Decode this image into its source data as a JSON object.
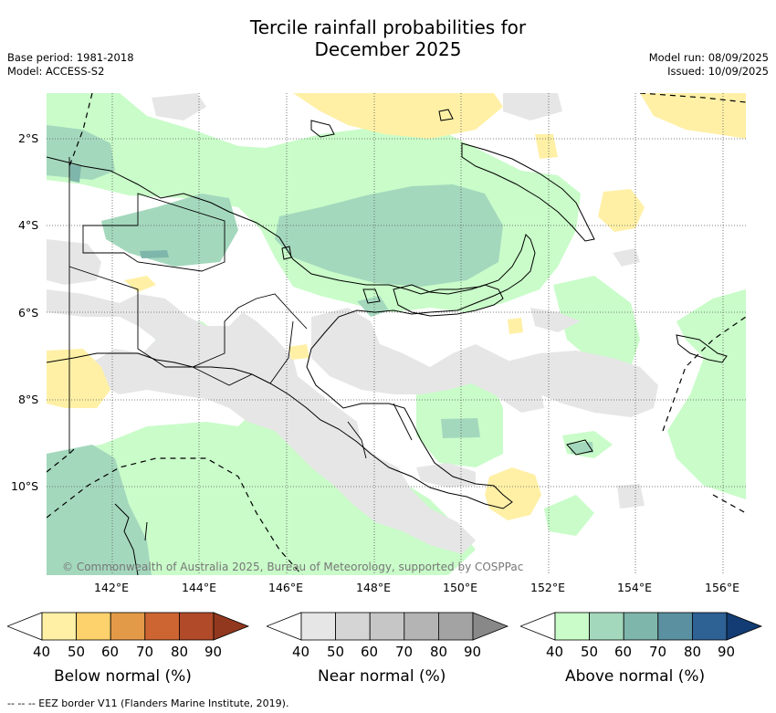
{
  "header": {
    "title_line1": "Tercile rainfall probabilities for",
    "title_line2": "December 2025",
    "base_period": "Base period: 1981-2018",
    "model": "Model: ACCESS-S2",
    "model_run": "Model run: 08/09/2025",
    "issued": "Issued: 10/09/2025"
  },
  "map": {
    "lat_labels": [
      "2°S",
      "4°S",
      "6°S",
      "8°S",
      "10°S"
    ],
    "lon_labels": [
      "142°E",
      "144°E",
      "146°E",
      "148°E",
      "150°E",
      "152°E",
      "154°E",
      "156°E"
    ],
    "copyright": "© Commonwealth of Australia 2025, Bureau of Meteorology, supported by COSPPac"
  },
  "legend": {
    "ticks": [
      "40",
      "50",
      "60",
      "70",
      "80",
      "90"
    ],
    "below": {
      "label": "Below normal (%)",
      "colors": [
        "#fff0a6",
        "#fdd16c",
        "#e39a48",
        "#cd6532",
        "#b04a29",
        "#91381f"
      ]
    },
    "near": {
      "label": "Near normal (%)",
      "colors": [
        "#e6e6e6",
        "#d5d5d5",
        "#c6c6c6",
        "#b4b4b4",
        "#a3a3a3",
        "#888888"
      ]
    },
    "above": {
      "label": "Above normal (%)",
      "colors": [
        "#c9fcc9",
        "#a4d8bd",
        "#7fb6ab",
        "#5a90a0",
        "#2e6194",
        "#123c73"
      ]
    }
  },
  "footer": {
    "eez_note": "-- -- -- EEZ border V11 (Flanders Marine Institute, 2019)."
  }
}
